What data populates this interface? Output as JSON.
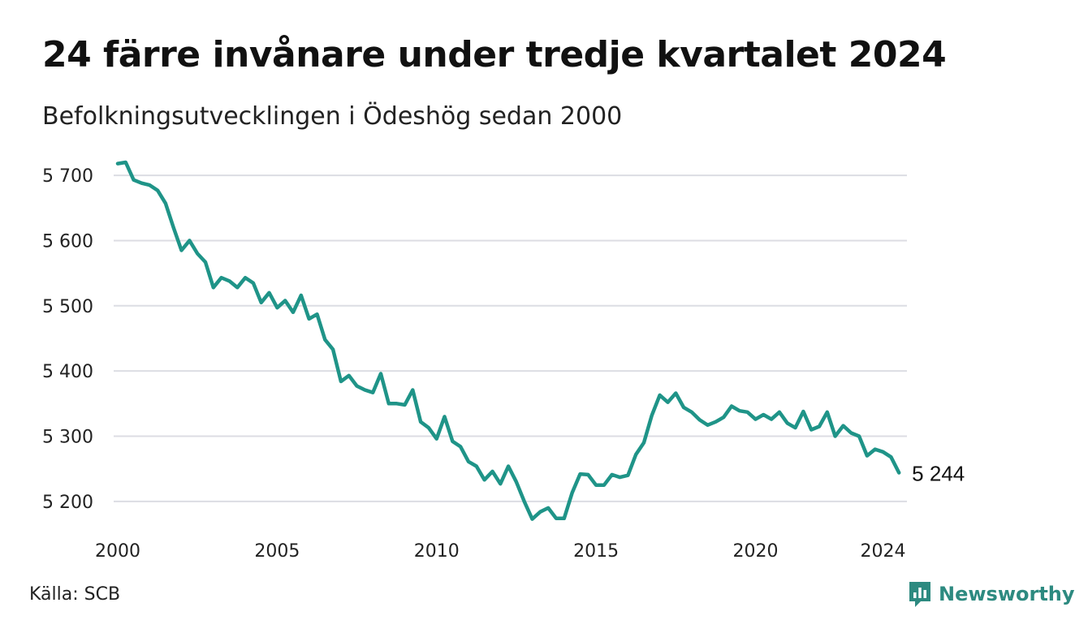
{
  "title": "24 färre invånare under tredje kvartalet 2024",
  "subtitle": "Befolkningsutvecklingen i Ödeshög sedan 2000",
  "source": "Källa: SCB",
  "brand": {
    "name": "Newsworthy",
    "icon": "newsworthy-logo-icon",
    "color": "#2d8a80"
  },
  "chart_data": {
    "type": "line",
    "line_color": "#1f9488",
    "grid": true,
    "grid_color": "#dcdde3",
    "x_start": 2000,
    "x_step": 0.25,
    "xlim": [
      2000,
      2024.75
    ],
    "ylim": [
      5160,
      5725
    ],
    "y_ticks": [
      5200,
      5300,
      5400,
      5500,
      5600,
      5700
    ],
    "y_tick_labels": [
      "5 200",
      "5 300",
      "5 400",
      "5 500",
      "5 600",
      "5 700"
    ],
    "x_ticks": [
      2000,
      2005,
      2010,
      2015,
      2020,
      2024
    ],
    "x_tick_labels": [
      "2000",
      "2005",
      "2010",
      "2015",
      "2020",
      "2024"
    ],
    "end_label": "5 244",
    "series": [
      {
        "values": [
          5718,
          5720,
          5693,
          5688,
          5685,
          5677,
          5657,
          5620,
          5585,
          5600,
          5580,
          5567,
          5528,
          5543,
          5538,
          5528,
          5543,
          5535,
          5505,
          5520,
          5497,
          5508,
          5490,
          5516,
          5480,
          5487,
          5448,
          5433,
          5384,
          5393,
          5377,
          5371,
          5367,
          5396,
          5350,
          5350,
          5348,
          5371,
          5322,
          5313,
          5296,
          5330,
          5292,
          5284,
          5261,
          5254,
          5233,
          5246,
          5227,
          5254,
          5230,
          5200,
          5173,
          5184,
          5190,
          5174,
          5174,
          5213,
          5242,
          5241,
          5225,
          5225,
          5241,
          5237,
          5240,
          5272,
          5290,
          5332,
          5363,
          5352,
          5366,
          5344,
          5337,
          5325,
          5317,
          5322,
          5329,
          5346,
          5339,
          5337,
          5326,
          5333,
          5326,
          5337,
          5320,
          5313,
          5338,
          5310,
          5315,
          5337,
          5300,
          5316,
          5305,
          5300,
          5270,
          5280,
          5276,
          5268,
          5244
        ]
      }
    ]
  }
}
